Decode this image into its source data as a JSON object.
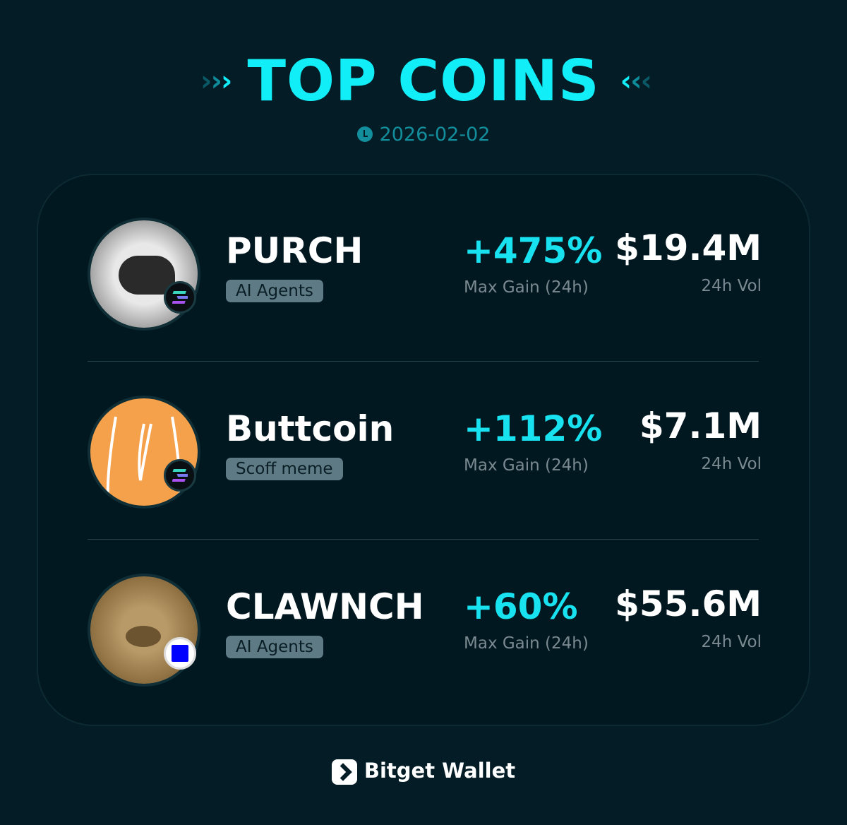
{
  "header": {
    "title": "TOP COINS",
    "date": "2026-02-02",
    "accent": "#12eef8"
  },
  "coins": [
    {
      "name": "PURCH",
      "tag": "AI Agents",
      "gain": "+475%",
      "gain_label": "Max Gain (24h)",
      "volume": "$19.4M",
      "volume_label": "24h Vol",
      "chain_icon": "solana-icon",
      "avatar_color": "#d8d8d8"
    },
    {
      "name": "Buttcoin",
      "tag": "Scoff meme",
      "gain": "+112%",
      "gain_label": "Max Gain (24h)",
      "volume": "$7.1M",
      "volume_label": "24h Vol",
      "chain_icon": "solana-icon",
      "avatar_color": "#f5a04a"
    },
    {
      "name": "CLAWNCH",
      "tag": "AI Agents",
      "gain": "+60%",
      "gain_label": "Max Gain (24h)",
      "volume": "$55.6M",
      "volume_label": "24h Vol",
      "chain_icon": "base-icon",
      "avatar_color": "#a88a5a"
    }
  ],
  "footer": {
    "brand": "Bitget Wallet"
  }
}
